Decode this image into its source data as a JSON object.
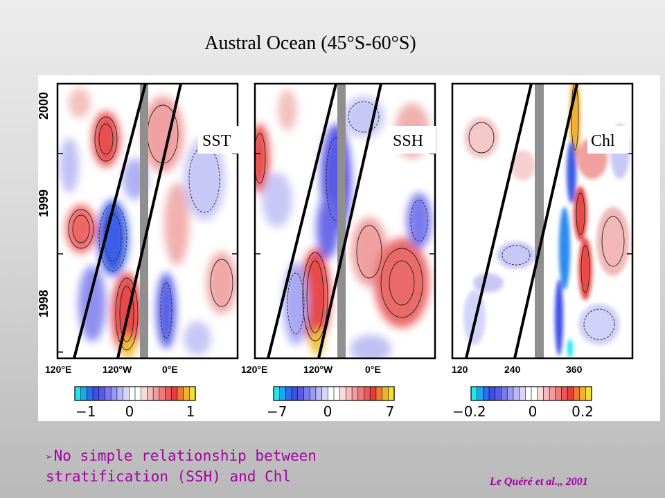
{
  "title": "Austral Ocean (45°S-60°S)",
  "year_labels": [
    "2000",
    "1999",
    "1998"
  ],
  "panels": [
    {
      "label": "SST",
      "x_ticks": [
        "120°E",
        "120°W",
        "0°E"
      ],
      "colorbar_ticks": [
        "−1",
        "0",
        "1"
      ]
    },
    {
      "label": "SSH",
      "x_ticks": [
        "120°E",
        "120°W",
        "0°E"
      ],
      "colorbar_ticks": [
        "−7",
        "0",
        "7"
      ]
    },
    {
      "label": "Chl",
      "x_ticks": [
        "120",
        "240",
        "360"
      ],
      "colorbar_ticks": [
        "−0.2",
        "0",
        "0.2"
      ]
    }
  ],
  "colorbar_colors": [
    "#1ee6f0",
    "#1ea6f0",
    "#2c6cf0",
    "#3c50e6",
    "#5a5ae6",
    "#7a7aee",
    "#9a9af2",
    "#b8b8f6",
    "#d6d6fa",
    "#ffffff",
    "#ffffff",
    "#fadada",
    "#f6bcbc",
    "#f29c9c",
    "#ee7a7a",
    "#ea5858",
    "#e63c3c",
    "#f07830",
    "#f0b030",
    "#f0e030"
  ],
  "bullet": {
    "marker": "➢",
    "text_line1": "No simple relationship between",
    "text_line2": "stratification (SSH) and Chl"
  },
  "citation": "Le Quéré et al.,, 2001"
}
